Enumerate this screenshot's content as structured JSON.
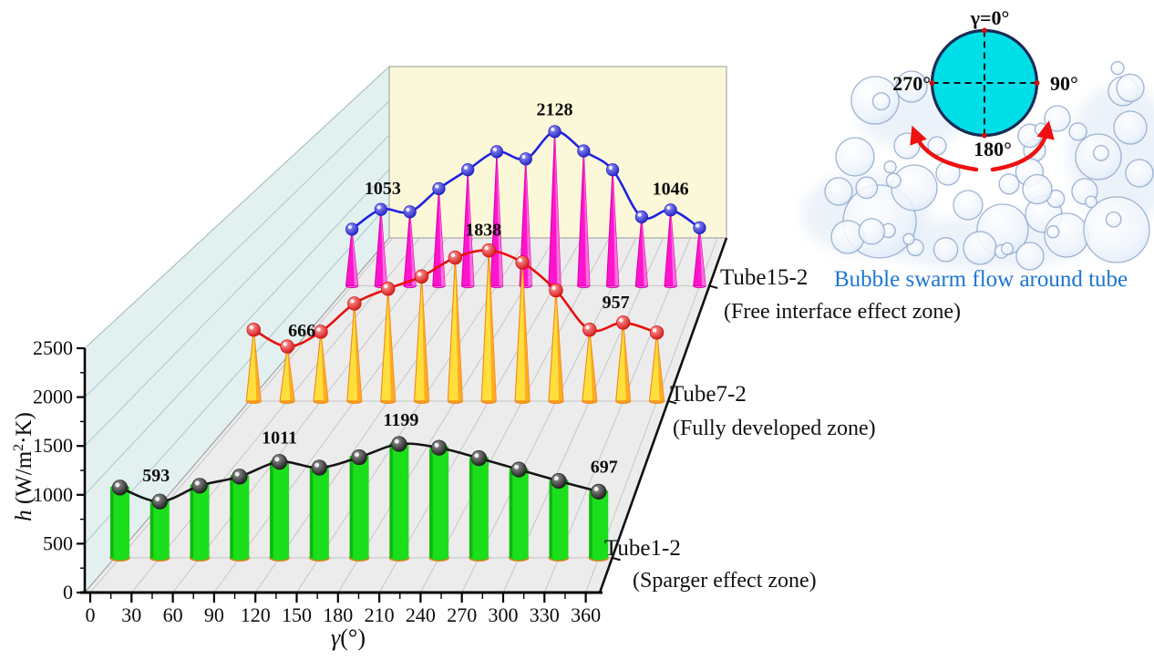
{
  "caption": {
    "text": "Bubble swarm flow around tube",
    "color": "#1B76D2"
  },
  "inset": {
    "name": "tube-cross-section-diagram",
    "top_label": "γ=0°",
    "right_label": "90°",
    "bottom_label": "180°",
    "left_label": "270°",
    "tube_color": "#00DFE8",
    "outline_color": "#1A2A55",
    "arrow_color": "#EE1111"
  },
  "chart_data": {
    "type": "3d-waterfall-line",
    "xlabel": "γ(°)",
    "ylabel": "h (W/m²·K)",
    "xlim": [
      0,
      360
    ],
    "ylim": [
      0,
      2500
    ],
    "x_ticks": [
      0,
      30,
      60,
      90,
      120,
      150,
      180,
      210,
      240,
      270,
      300,
      330,
      360
    ],
    "y_ticks": [
      0,
      500,
      1000,
      1500,
      2000,
      2500
    ],
    "x": [
      0,
      30,
      60,
      90,
      120,
      150,
      180,
      210,
      240,
      270,
      300,
      330,
      360
    ],
    "legend_position": "right-of-rows",
    "grid": true,
    "series": [
      {
        "name": "Tube1-2",
        "zone": "(Sparger effect zone)",
        "glyph": "cylinder",
        "fill": "#1ADF1A",
        "accent": "#0CA80C",
        "outline": "#E57F25",
        "line_color": "#151515",
        "marker_color": "#1A1A1A",
        "values": [
          740,
          593,
          760,
          855,
          1011,
          950,
          1060,
          1199,
          1160,
          1050,
          930,
          810,
          697
        ],
        "labeled_points": [
          {
            "i": 1,
            "label": "593",
            "dx": -4,
            "dy": -9
          },
          {
            "i": 4,
            "label": "1011",
            "dx": 0,
            "dy": -7
          },
          {
            "i": 7,
            "label": "1199",
            "dx": 2,
            "dy": -7
          },
          {
            "i": 12,
            "label": "697",
            "dx": 6,
            "dy": -8
          }
        ]
      },
      {
        "name": "Tube7-2",
        "zone": "(Fully developed zone)",
        "glyph": "cone",
        "fill": "#FFDF3C",
        "accent": "#FFA21E",
        "outline": "#EF8818",
        "line_color": "#E81010",
        "marker_color": "#D80000",
        "values": [
          870,
          666,
          845,
          1190,
          1370,
          1520,
          1750,
          1838,
          1690,
          1350,
          870,
          957,
          835
        ],
        "labeled_points": [
          {
            "i": 1,
            "label": "666",
            "dx": 16,
            "dy": 2
          },
          {
            "i": 7,
            "label": "1838",
            "dx": -6,
            "dy": -3
          },
          {
            "i": 11,
            "label": "957",
            "dx": -8,
            "dy": -3
          }
        ]
      },
      {
        "name": "Tube15-2",
        "zone": "(Free interface effect zone)",
        "glyph": "cone",
        "fill": "#FF14CE",
        "accent": "#FF7BE2",
        "outline": "#DC00AE",
        "line_color": "#2020E0",
        "marker_color": "#1414C8",
        "values": [
          780,
          1053,
          1020,
          1340,
          1600,
          1850,
          1750,
          2128,
          1860,
          1600,
          950,
          1046,
          800
        ],
        "labeled_points": [
          {
            "i": 1,
            "label": "1053",
            "dx": 2,
            "dy": -4
          },
          {
            "i": 7,
            "label": "2128",
            "dx": 0,
            "dy": -5
          },
          {
            "i": 11,
            "label": "1046",
            "dx": 0,
            "dy": -4
          }
        ]
      }
    ]
  }
}
